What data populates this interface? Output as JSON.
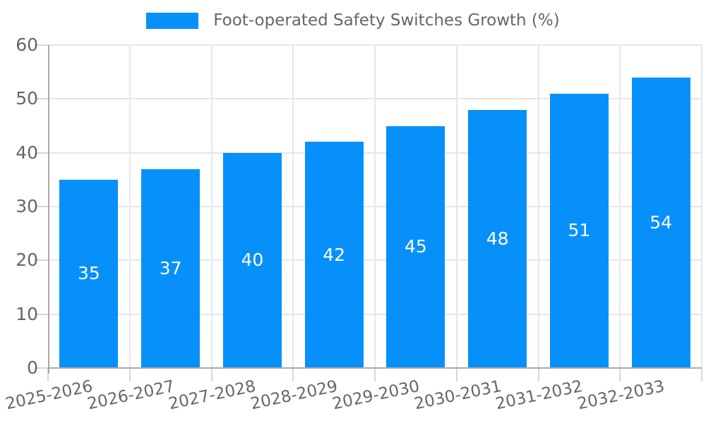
{
  "legend": {
    "label": "Foot-operated Safety Switches Growth (%)"
  },
  "chart_data": {
    "type": "bar",
    "title": "Foot-operated Safety Switches Growth (%)",
    "series_name": "Foot-operated Safety Switches Growth (%)",
    "categories": [
      "2025-2026",
      "2026-2027",
      "2027-2028",
      "2028-2029",
      "2029-2030",
      "2030-2031",
      "2031-2032",
      "2032-2033"
    ],
    "values": [
      35,
      37,
      40,
      42,
      45,
      48,
      51,
      54
    ],
    "value_labels_shown": true,
    "xlabel": "",
    "ylabel": "",
    "ylim": [
      0,
      60
    ],
    "yticks": [
      0,
      10,
      20,
      30,
      40,
      50,
      60
    ],
    "grid": true,
    "legend_position": "top-center",
    "x_tick_rotation_deg": -12,
    "colors": {
      "bar": "#0890fa",
      "bar_value_text": "#ffffff",
      "axis_text": "#666666",
      "grid_line": "#e6e6e6",
      "axis_line": "#a9a9a9",
      "tick_mark": "#d6d6d6",
      "background": "#ffffff"
    }
  }
}
